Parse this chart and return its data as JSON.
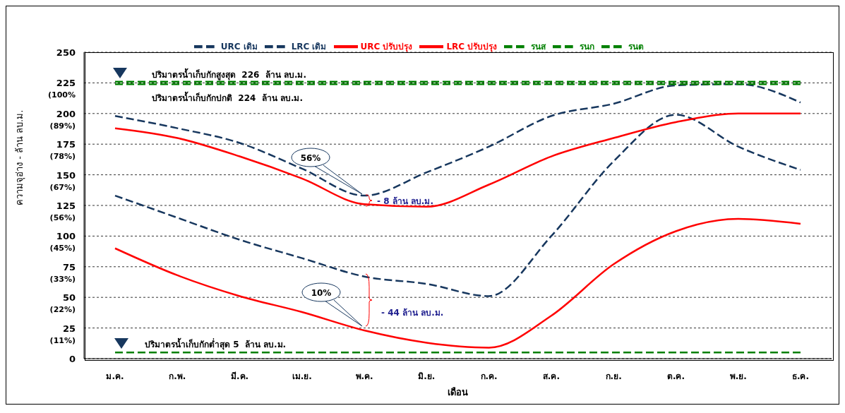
{
  "chart_data": {
    "type": "line",
    "xlabel": "เดือน",
    "ylabel": "ความจุอ่าง - ล้าน ลบ.ม.",
    "categories": [
      "ม.ค.",
      "ก.พ.",
      "มี.ค.",
      "เม.ย.",
      "พ.ค.",
      "มิ.ย.",
      "ก.ค.",
      "ส.ค.",
      "ก.ย.",
      "ต.ค.",
      "พ.ย.",
      "ธ.ค."
    ],
    "series": [
      {
        "name": "URC เดิม",
        "color": "#17375e",
        "line_style": "dashed",
        "values": [
          198,
          188,
          176,
          155,
          133,
          152,
          173,
          198,
          208,
          223,
          224,
          209
        ]
      },
      {
        "name": "LRC เดิม",
        "color": "#17375e",
        "line_style": "dashed",
        "values": [
          133,
          115,
          97,
          82,
          67,
          61,
          51,
          100,
          161,
          199,
          173,
          154
        ]
      },
      {
        "name": "URC ปรับปรุง",
        "color": "#ff0000",
        "line_style": "solid",
        "values": [
          188,
          180,
          165,
          147,
          126,
          124,
          142,
          165,
          180,
          193,
          200,
          200
        ]
      },
      {
        "name": "LRC ปรับปรุง",
        "color": "#ff0000",
        "line_style": "solid",
        "values": [
          90,
          68,
          51,
          38,
          23,
          13,
          9,
          35,
          77,
          104,
          114,
          110
        ]
      },
      {
        "name": "รนส",
        "color": "#008000",
        "line_style": "dashed",
        "values": [
          226,
          226,
          226,
          226,
          226,
          226,
          226,
          226,
          226,
          226,
          226,
          226
        ]
      },
      {
        "name": "รนก",
        "color": "#008000",
        "line_style": "dashed",
        "values": [
          224,
          224,
          224,
          224,
          224,
          224,
          224,
          224,
          224,
          224,
          224,
          224
        ]
      },
      {
        "name": "รนต",
        "color": "#008000",
        "line_style": "dashed",
        "values": [
          5,
          5,
          5,
          5,
          5,
          5,
          5,
          5,
          5,
          5,
          5,
          5
        ]
      }
    ],
    "ylim": [
      0,
      250
    ],
    "yticks": [
      {
        "value": 0,
        "label": "0"
      },
      {
        "value": 25,
        "label": "25\n(11%)"
      },
      {
        "value": 50,
        "label": "50\n(22%)"
      },
      {
        "value": 75,
        "label": "75\n(33%)"
      },
      {
        "value": 100,
        "label": "100\n(45%)"
      },
      {
        "value": 125,
        "label": "125\n(56%)"
      },
      {
        "value": 150,
        "label": "150\n(67%)"
      },
      {
        "value": 175,
        "label": "175\n(78%)"
      },
      {
        "value": 200,
        "label": "200\n(89%)"
      },
      {
        "value": 225,
        "label": "225\n(100%"
      },
      {
        "value": 250,
        "label": "250"
      }
    ],
    "grid": "y",
    "legend": "top",
    "marker": "none",
    "annotations": [
      "ปริมาตรน้ำเก็บกักสูงสุด  226  ล้าน ลบ.ม.",
      "ปริมาตรน้ำเก็บกักปกติ  224  ล้าน ลบ.ม.",
      "ปริมาตรน้ำเก็บกักต่ำสุด 5  ล้าน ลบ.ม.",
      "56%",
      "10%",
      "- 8 ล้าน ลบ.ม.",
      "- 44 ล้าน ลบ.ม."
    ]
  }
}
